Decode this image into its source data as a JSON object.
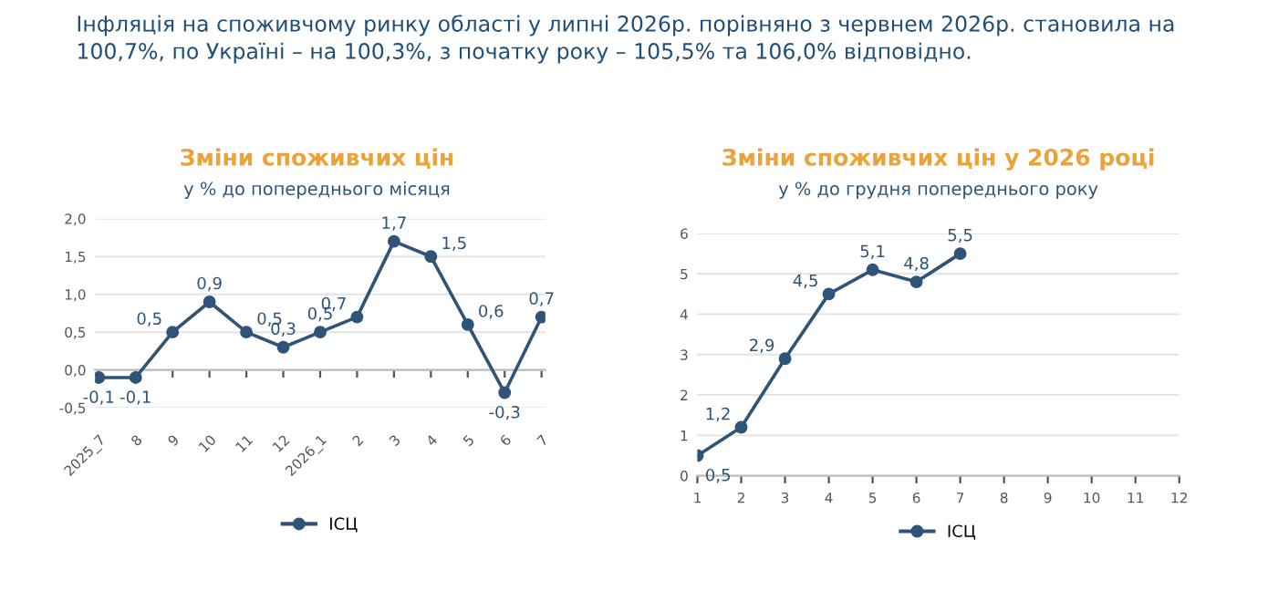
{
  "chart_data": [
    {
      "type": "line",
      "title": "Зміни споживчих цін",
      "subtitle": "у % до попереднього місяця",
      "annotations": [
        "Інфляція на споживчому ринку області у липні 2026р. порівняно з червнем 2026р. становила на 100,7%, по Україні – на 100,3%, з початку року – 105,5% та 106,0% відповідно."
      ],
      "categories": [
        "2025_7",
        "8",
        "9",
        "10",
        "11",
        "12",
        "2026_1",
        "2",
        "3",
        "4",
        "5",
        "6",
        "7"
      ],
      "series": [
        {
          "name": "ІСЦ",
          "color": "#2f5478",
          "values": [
            -0.1,
            -0.1,
            0.5,
            0.9,
            0.5,
            0.3,
            0.5,
            0.7,
            1.7,
            1.5,
            0.6,
            -0.3,
            0.7
          ],
          "value_labels": [
            "-0,1",
            "-0,1",
            "0,5",
            "0,9",
            "0,5",
            "0,3",
            "0,5",
            "0,7",
            "1,7",
            "1,5",
            "0,6",
            "-0,3",
            "0,7"
          ]
        }
      ],
      "ylim": [
        -0.5,
        2.0
      ],
      "yticks": [
        {
          "value": -0.5,
          "label": "-0,5"
        },
        {
          "value": 0,
          "label": "0,0"
        },
        {
          "value": 0.5,
          "label": "0,5"
        },
        {
          "value": 1.0,
          "label": "1,0"
        },
        {
          "value": 1.5,
          "label": "1,5"
        },
        {
          "value": 2.0,
          "label": "2,0"
        }
      ],
      "grid": "y",
      "legend": "bottom",
      "marker": "circle",
      "line_style": "solid"
    },
    {
      "type": "line",
      "title": "Зміни споживчих цін у 2026 році",
      "subtitle": "у % до грудня попереднього року",
      "x": [
        1,
        2,
        3,
        4,
        5,
        6,
        7
      ],
      "series": [
        {
          "name": "ІСЦ",
          "color": "#2f5478",
          "values": [
            0.5,
            1.2,
            2.9,
            4.5,
            5.1,
            4.8,
            5.5
          ],
          "value_labels": [
            "0,5",
            "1,2",
            "2,9",
            "4,5",
            "5,1",
            "4,8",
            "5,5"
          ]
        }
      ],
      "xlim": [
        1,
        12
      ],
      "xticks": [
        1,
        2,
        3,
        4,
        5,
        6,
        7,
        8,
        9,
        10,
        11,
        12
      ],
      "ylim": [
        0,
        6
      ],
      "yticks": [
        0,
        1,
        2,
        3,
        4,
        5,
        6
      ],
      "grid": "y",
      "legend": "bottom",
      "marker": "circle",
      "line_style": "solid"
    }
  ]
}
